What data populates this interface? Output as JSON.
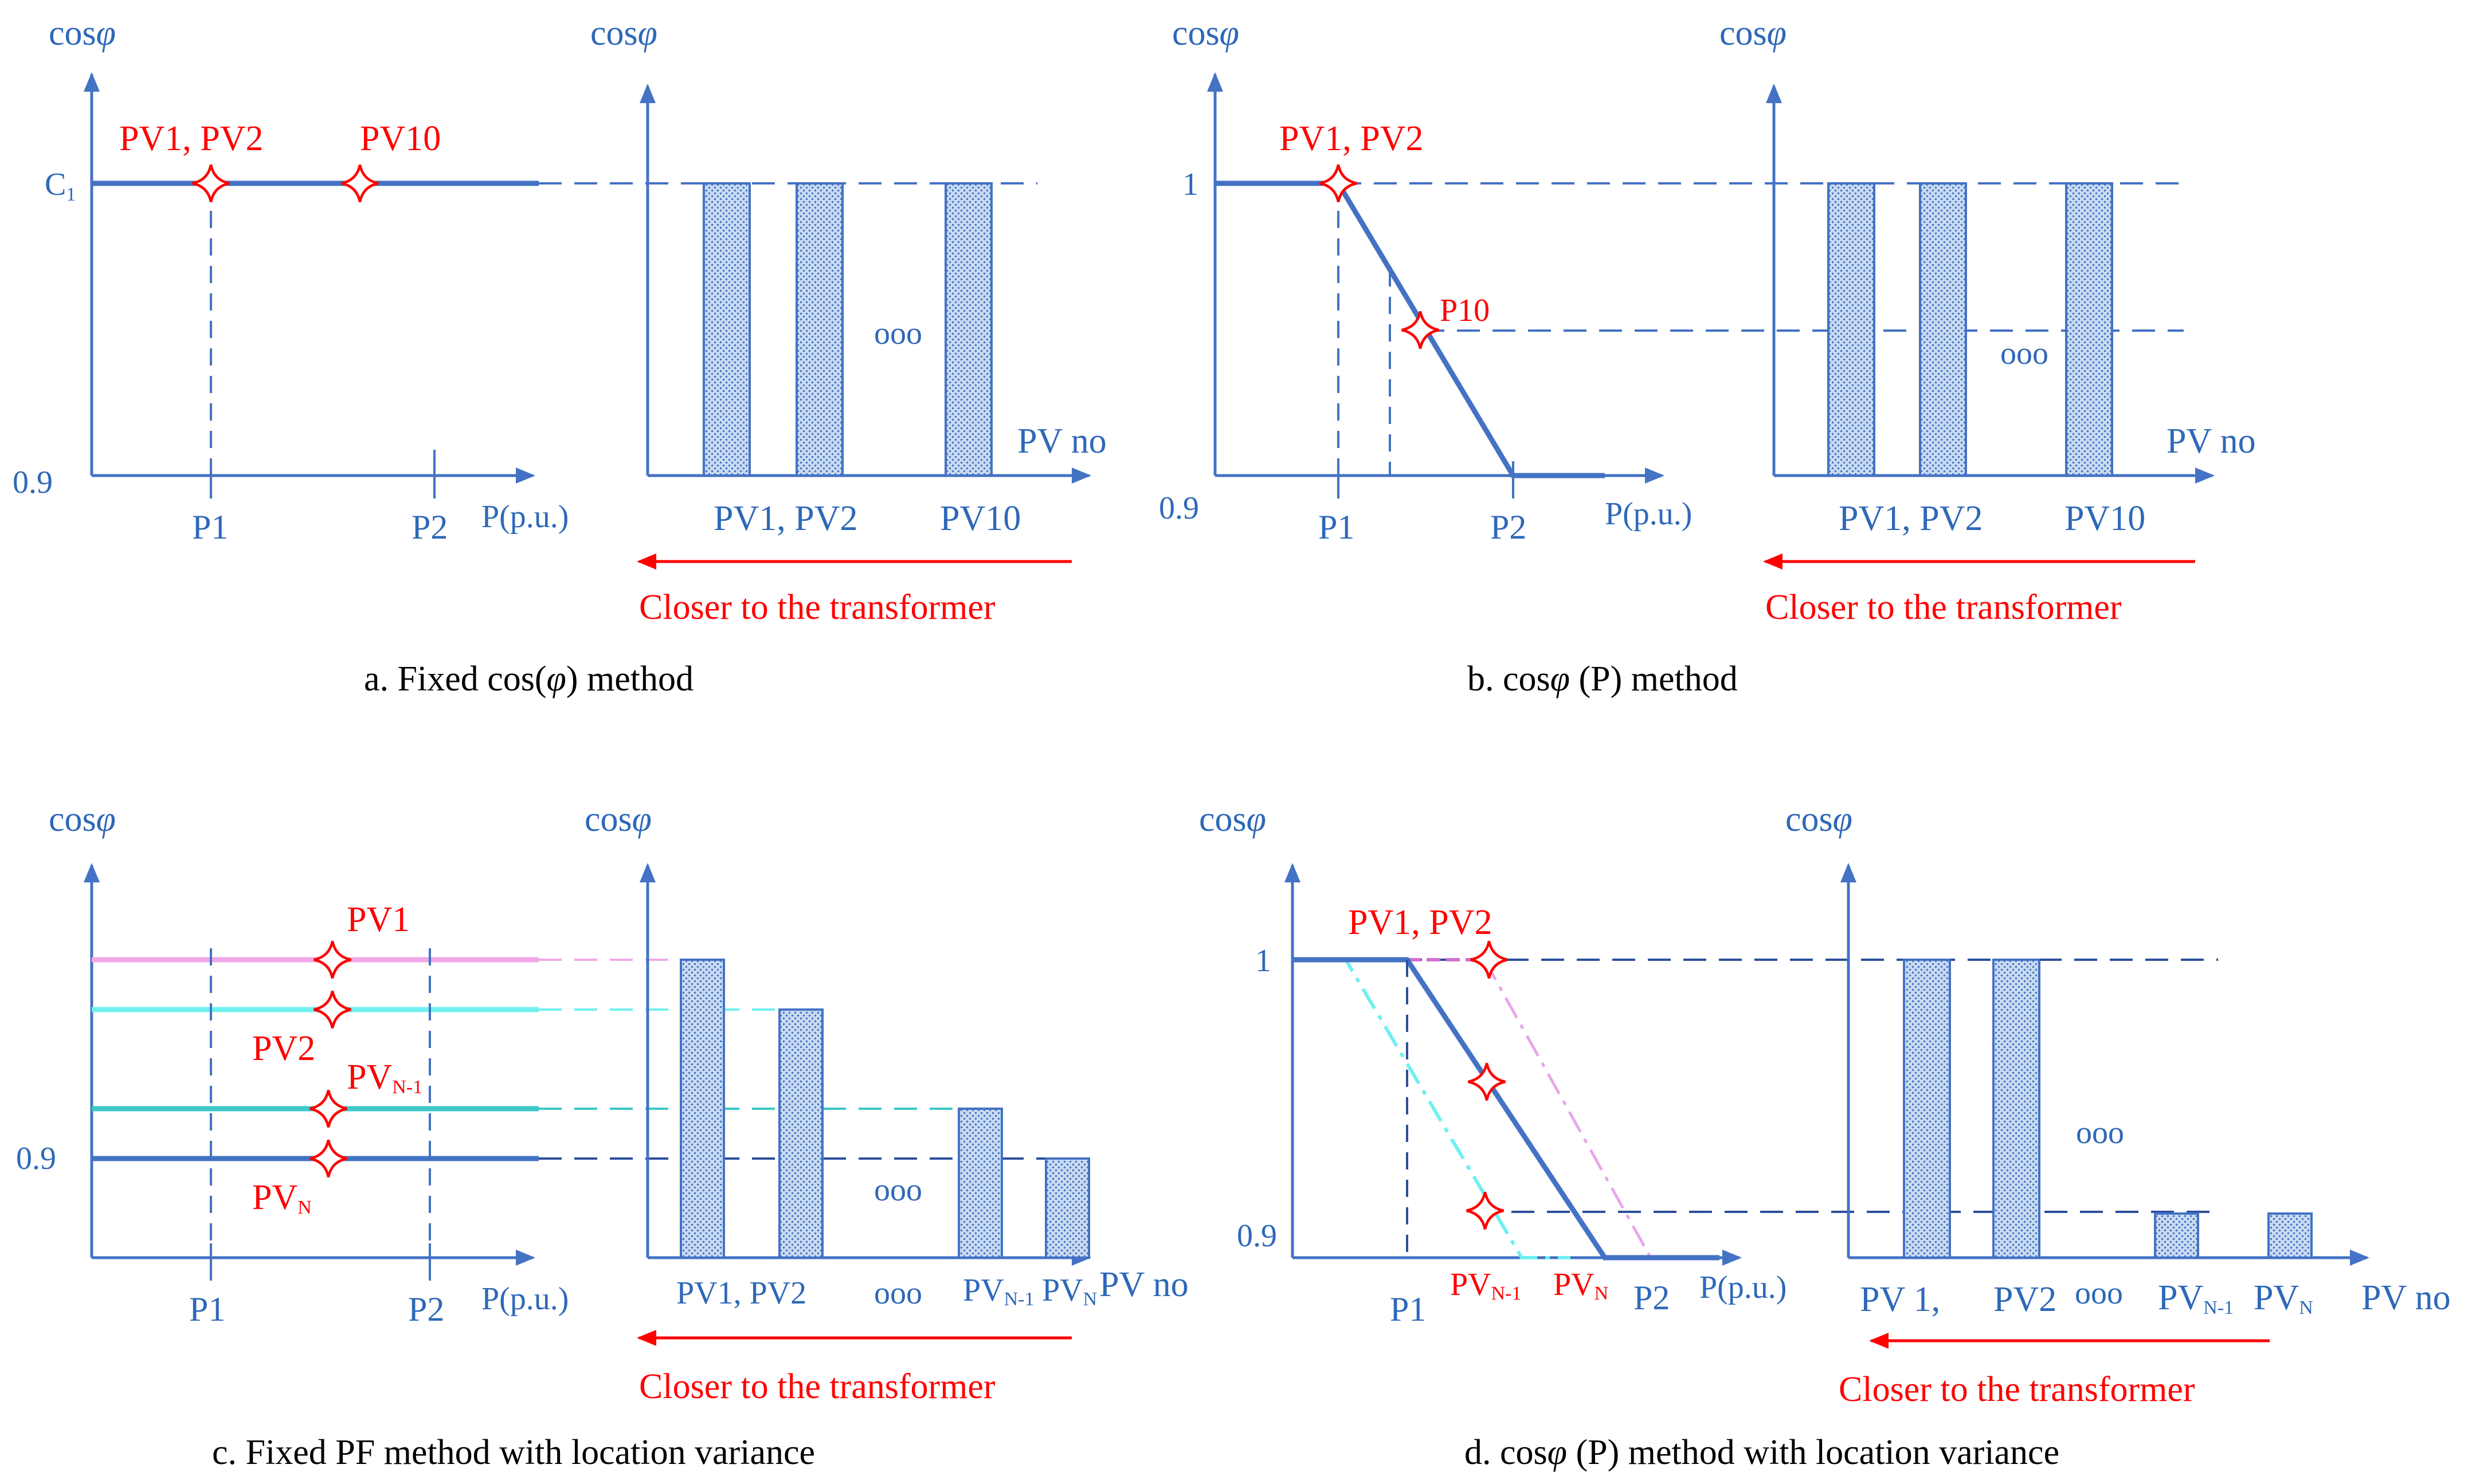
{
  "colors": {
    "axis": "#4472c4",
    "axis_text": "#2e68b8",
    "highlight": "#ff0000",
    "pink": "#f0a8e8",
    "cyan": "#6ff0f0",
    "teal": "#3cc8c8",
    "magenta_dash": "#d070d0",
    "bar_fill": "#8fb4e4"
  },
  "common": {
    "y_axis_label": "cosφ",
    "y_axis_label_prefix": "cos",
    "y_axis_label_symbol": "φ",
    "x_axis_label": "P(p.u.)",
    "x_axis_label_bars": "PV no",
    "y_min_label": "0.9",
    "tick_p1": "P1",
    "tick_p2": "P2",
    "arrow_caption": "Closer to the transformer",
    "ellipsis": "ooo"
  },
  "panel_a": {
    "caption_prefix": "a. Fixed cos(",
    "caption_symbol": "φ",
    "caption_suffix": ") method",
    "y_value_label": "C",
    "y_value_sub": "1",
    "marker_labels": [
      "PV1, PV2",
      "PV10"
    ],
    "bar_labels": [
      "PV1, PV2",
      "PV10"
    ]
  },
  "panel_b": {
    "caption_prefix": "b. cos",
    "caption_symbol": "φ",
    "caption_suffix": " (P)  method",
    "y_value_label": "1",
    "marker_labels": [
      "PV1, PV2",
      "P10"
    ],
    "bar_labels": [
      "PV1, PV2",
      "PV10"
    ]
  },
  "panel_c": {
    "caption": "c. Fixed PF method with location variance",
    "marker_labels": [
      "PV1",
      "PV2"
    ],
    "marker_n1": "PV",
    "marker_n1_sub": "N-1",
    "marker_n": "PV",
    "marker_n_sub": "N",
    "bar_label_12": "PV1, PV2",
    "bar_label_n1": "PV",
    "bar_label_n1_sub": "N-1",
    "bar_label_n": "PV",
    "bar_label_n_sub": "N"
  },
  "panel_d": {
    "caption_prefix": "d. cos",
    "caption_symbol": "φ",
    "caption_suffix": " (P)  method with location variance",
    "y_value_label": "1",
    "marker_label": "PV1, PV2",
    "curve_n1": "PV",
    "curve_n1_sub": "N-1",
    "curve_n": "PV",
    "curve_n_sub": "N",
    "bar_label_1": "PV 1,",
    "bar_label_2": "PV2",
    "bar_label_n1": "PV",
    "bar_label_n1_sub": "N-1",
    "bar_label_n": "PV",
    "bar_label_n_sub": "N"
  }
}
